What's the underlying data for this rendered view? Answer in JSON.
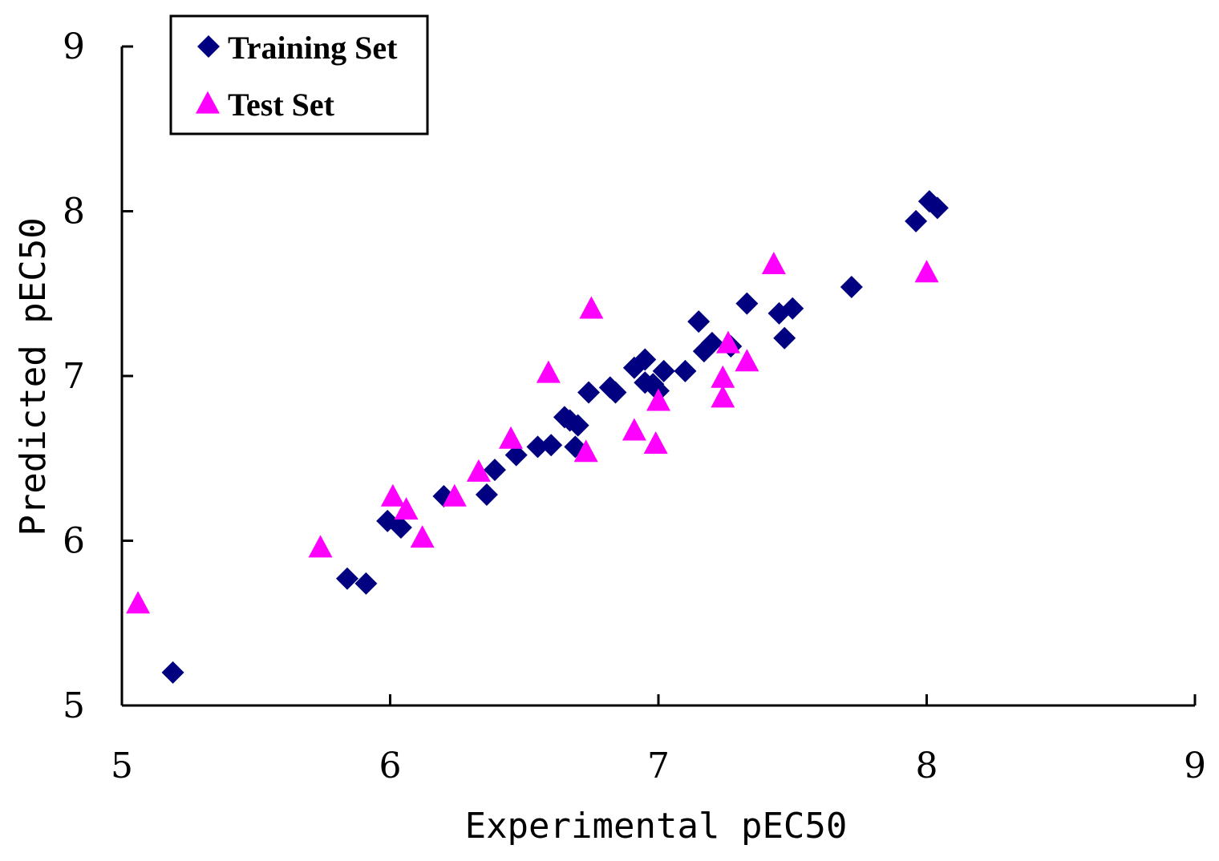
{
  "chart_data": {
    "type": "scatter",
    "xlabel": "Experimental pEC50",
    "ylabel": "Predicted pEC50",
    "xlim": [
      5,
      9
    ],
    "ylim": [
      5,
      9
    ],
    "x_ticks": [
      "5",
      "6",
      "7",
      "8",
      "9"
    ],
    "y_ticks": [
      "5",
      "6",
      "7",
      "8",
      "9"
    ],
    "grid": false,
    "legend_position": "top-left",
    "series": [
      {
        "name": "Training Set",
        "marker": "diamond",
        "color": "#000080",
        "points": [
          [
            5.19,
            5.2
          ],
          [
            5.84,
            5.77
          ],
          [
            5.91,
            5.74
          ],
          [
            5.99,
            6.12
          ],
          [
            6.04,
            6.08
          ],
          [
            6.2,
            6.27
          ],
          [
            6.36,
            6.28
          ],
          [
            6.39,
            6.43
          ],
          [
            6.47,
            6.52
          ],
          [
            6.55,
            6.57
          ],
          [
            6.6,
            6.58
          ],
          [
            6.65,
            6.75
          ],
          [
            6.67,
            6.73
          ],
          [
            6.69,
            6.57
          ],
          [
            6.7,
            6.7
          ],
          [
            6.74,
            6.9
          ],
          [
            6.82,
            6.93
          ],
          [
            6.84,
            6.9
          ],
          [
            6.91,
            7.05
          ],
          [
            6.95,
            7.1
          ],
          [
            6.95,
            6.96
          ],
          [
            6.98,
            6.95
          ],
          [
            7.0,
            6.91
          ],
          [
            7.02,
            7.03
          ],
          [
            7.1,
            7.03
          ],
          [
            7.15,
            7.33
          ],
          [
            7.17,
            7.15
          ],
          [
            7.2,
            7.2
          ],
          [
            7.27,
            7.18
          ],
          [
            7.33,
            7.44
          ],
          [
            7.45,
            7.38
          ],
          [
            7.47,
            7.23
          ],
          [
            7.5,
            7.41
          ],
          [
            7.72,
            7.54
          ],
          [
            7.96,
            7.94
          ],
          [
            8.01,
            8.06
          ],
          [
            8.04,
            8.02
          ]
        ]
      },
      {
        "name": "Test Set",
        "marker": "triangle",
        "color": "#FF00FF",
        "points": [
          [
            5.06,
            5.61
          ],
          [
            5.74,
            5.95
          ],
          [
            6.01,
            6.26
          ],
          [
            6.06,
            6.18
          ],
          [
            6.12,
            6.01
          ],
          [
            6.24,
            6.26
          ],
          [
            6.33,
            6.41
          ],
          [
            6.45,
            6.61
          ],
          [
            6.59,
            7.01
          ],
          [
            6.73,
            6.53
          ],
          [
            6.75,
            7.4
          ],
          [
            6.91,
            6.66
          ],
          [
            6.99,
            6.58
          ],
          [
            7.0,
            6.84
          ],
          [
            7.24,
            6.98
          ],
          [
            7.24,
            6.86
          ],
          [
            7.26,
            7.19
          ],
          [
            7.33,
            7.08
          ],
          [
            7.43,
            7.67
          ],
          [
            8.0,
            7.62
          ]
        ]
      }
    ]
  }
}
